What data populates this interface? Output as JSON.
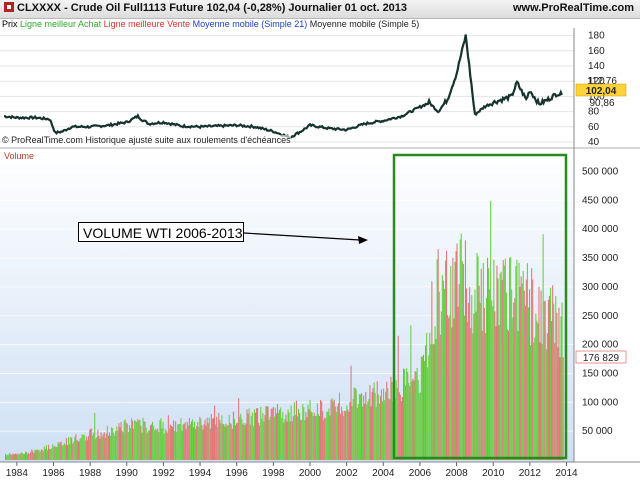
{
  "title_bar": {
    "left_text": "CLXXXX - Crude Oil Full1113 Future   102,04 (-0,28%)   Journalier  01 oct. 2013",
    "right_text": "www.ProRealTime.com"
  },
  "legend": [
    {
      "text": "Prix",
      "color": "#000000"
    },
    {
      "text": "Ligne meilleur Achat",
      "color": "#2eaa2e"
    },
    {
      "text": "Ligne meilleure Vente",
      "color": "#e03030"
    },
    {
      "text": "Moyenne mobile (Simple 21)",
      "color": "#1a3fc0"
    },
    {
      "text": "Moyenne mobile (Simple 5)",
      "color": "#222222"
    }
  ],
  "history_note": "© ProRealTime.com  Historique ajusté suite aux roulements d'échéances",
  "volume_label": "Volume",
  "annotation": "VOLUME WTI 2006-2013",
  "price_tags": {
    "last": "102,04",
    "upper": "112,76",
    "lower": "90,86"
  },
  "volume_tag": "176 829",
  "colors": {
    "price_line": "#17332e",
    "vol_up": "#6ccf4a",
    "vol_down": "#e07a7a",
    "box": "#2b8a1e",
    "tag_price_bg": "#ffd23c",
    "tag_vol": "#e07a7a"
  },
  "chart_data": [
    {
      "type": "line",
      "name": "price",
      "ylim": [
        40,
        190
      ],
      "yticks": [
        40,
        60,
        80,
        100,
        120,
        140,
        160,
        180
      ],
      "x": [
        1983.3,
        1984,
        1985,
        1985.8,
        1986.1,
        1986.5,
        1987,
        1988,
        1989,
        1990,
        1990.6,
        1990.8,
        1991.2,
        1992,
        1993,
        1994,
        1995,
        1996,
        1997,
        1998,
        1998.9,
        1999.5,
        2000,
        2001,
        2002,
        2003,
        2004,
        2005,
        2006,
        2006.5,
        2007,
        2007.5,
        2008,
        2008.5,
        2009,
        2009.5,
        2010,
        2011,
        2011.3,
        2011.8,
        2012,
        2012.5,
        2013,
        2013.5,
        2013.75
      ],
      "y": [
        74,
        72,
        72,
        70,
        52,
        54,
        60,
        60,
        62,
        66,
        74,
        70,
        64,
        66,
        61,
        60,
        61,
        62,
        60,
        54,
        46,
        54,
        62,
        58,
        56,
        64,
        68,
        74,
        86,
        92,
        80,
        96,
        130,
        180,
        76,
        86,
        92,
        100,
        118,
        96,
        108,
        90,
        96,
        104,
        102
      ]
    },
    {
      "type": "bar",
      "name": "volume",
      "ylim": [
        0,
        520000
      ],
      "yticks": [
        50000,
        100000,
        150000,
        200000,
        250000,
        300000,
        350000,
        400000,
        450000,
        500000
      ],
      "ytick_labels": [
        "50 000",
        "100 000",
        "150 000",
        "200 000",
        "250 000",
        "300 000",
        "350 000",
        "400 000",
        "450 000",
        "500 000"
      ],
      "xlim": [
        1983.3,
        2014.3
      ],
      "xticks": [
        1984,
        1986,
        1988,
        1990,
        1992,
        1994,
        1996,
        1998,
        2000,
        2002,
        2004,
        2006,
        2008,
        2010,
        2012,
        2014
      ],
      "x": [
        1984,
        1985,
        1986,
        1987,
        1988,
        1989,
        1990,
        1991,
        1992,
        1993,
        1994,
        1995,
        1996,
        1997,
        1998,
        1999,
        2000,
        2001,
        2002,
        2003,
        2004,
        2005,
        2006,
        2006.5,
        2007,
        2007.5,
        2008,
        2008.5,
        2009,
        2009.5,
        2010,
        2010.5,
        2011,
        2011.5,
        2012,
        2012.5,
        2013,
        2013.75
      ],
      "values": [
        10000,
        15000,
        25000,
        35000,
        45000,
        50000,
        60000,
        60000,
        58000,
        60000,
        65000,
        68000,
        70000,
        75000,
        80000,
        85000,
        85000,
        90000,
        100000,
        110000,
        120000,
        130000,
        140000,
        230000,
        290000,
        300000,
        340000,
        300000,
        280000,
        300000,
        300000,
        290000,
        290000,
        280000,
        270000,
        260000,
        250000,
        230000
      ]
    }
  ]
}
